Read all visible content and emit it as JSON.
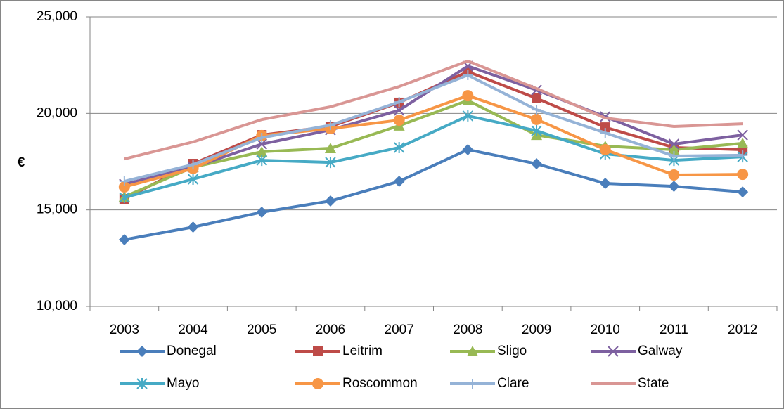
{
  "chart_data": {
    "type": "line",
    "y_label": "€",
    "categories": [
      "2003",
      "2004",
      "2005",
      "2006",
      "2007",
      "2008",
      "2009",
      "2010",
      "2011",
      "2012"
    ],
    "series": [
      {
        "name": "Donegal",
        "color": "#4a7ebb",
        "marker": "diamond",
        "values": [
          13460,
          14110,
          14880,
          15460,
          16480,
          18120,
          17390,
          16370,
          16220,
          15930
        ]
      },
      {
        "name": "Leitrim",
        "color": "#be4b48",
        "marker": "square",
        "values": [
          15570,
          17390,
          18880,
          19320,
          20560,
          22160,
          20780,
          19280,
          18230,
          18120
        ]
      },
      {
        "name": "Sligo",
        "color": "#98b954",
        "marker": "triangle",
        "values": [
          15680,
          17210,
          18010,
          18190,
          19360,
          20670,
          18880,
          18300,
          18120,
          18450
        ]
      },
      {
        "name": "Galway",
        "color": "#7d60a0",
        "marker": "x",
        "values": [
          16330,
          17210,
          18410,
          19140,
          20160,
          22450,
          21210,
          19830,
          18410,
          18880
        ]
      },
      {
        "name": "Mayo",
        "color": "#46aac5",
        "marker": "asterisk",
        "values": [
          15640,
          16590,
          17570,
          17460,
          18230,
          19870,
          19100,
          17900,
          17570,
          17750
        ]
      },
      {
        "name": "Roscommon",
        "color": "#f79646",
        "marker": "circle",
        "values": [
          16190,
          17140,
          18850,
          19210,
          19650,
          20920,
          19690,
          18120,
          16810,
          16840
        ]
      },
      {
        "name": "Clare",
        "color": "#95b3d7",
        "marker": "plus",
        "values": [
          16480,
          17350,
          18740,
          19390,
          20590,
          21980,
          20190,
          18990,
          17790,
          17830
        ]
      },
      {
        "name": "State",
        "color": "#d99694",
        "marker": "none",
        "values": [
          17640,
          18520,
          19680,
          20340,
          21390,
          22710,
          21290,
          19760,
          19320,
          19460
        ]
      }
    ],
    "ylim": [
      10000,
      25000
    ],
    "yticks": [
      {
        "value": 10000,
        "label": "10,000"
      },
      {
        "value": 15000,
        "label": "15,000"
      },
      {
        "value": 20000,
        "label": "20,000"
      },
      {
        "value": 25000,
        "label": "25,000"
      }
    ],
    "grid": true
  }
}
